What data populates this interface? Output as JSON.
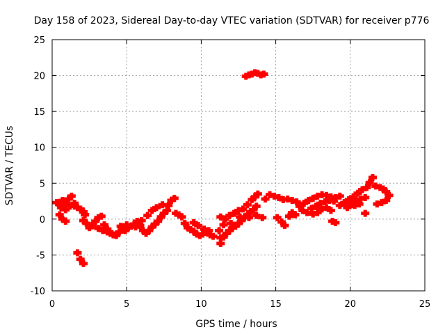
{
  "chart_data": {
    "type": "scatter",
    "title": "Day 158 of 2023, Sidereal Day-to-day VTEC variation (SDTVAR) for receiver p776",
    "xlabel": "GPS time / hours",
    "ylabel": "SDTVAR / TECUs",
    "xlim": [
      0,
      25
    ],
    "ylim": [
      -10,
      25
    ],
    "xticks": [
      "0",
      "5",
      "10",
      "15",
      "20",
      "25"
    ],
    "yticks": [
      "-10",
      "-5",
      "0",
      "5",
      "10",
      "15",
      "20",
      "25"
    ],
    "grid": true,
    "colors": {
      "points": "#ff0000",
      "grid": "#a0a0a0",
      "axes": "#000000"
    },
    "series": [
      {
        "name": "SDTVAR",
        "points": [
          [
            0.3,
            2.3
          ],
          [
            0.5,
            2.0
          ],
          [
            0.7,
            2.6
          ],
          [
            0.9,
            2.1
          ],
          [
            1.1,
            2.8
          ],
          [
            1.3,
            3.2
          ],
          [
            1.5,
            2.2
          ],
          [
            1.7,
            1.6
          ],
          [
            1.9,
            1.4
          ],
          [
            2.1,
            1.0
          ],
          [
            0.5,
            0.6
          ],
          [
            0.7,
            0.0
          ],
          [
            0.9,
            -0.3
          ],
          [
            0.6,
            1.6
          ],
          [
            0.9,
            1.3
          ],
          [
            1.2,
            1.8
          ],
          [
            1.5,
            1.8
          ],
          [
            2.2,
            0.6
          ],
          [
            2.1,
            -0.2
          ],
          [
            2.3,
            -0.6
          ],
          [
            2.5,
            -1.2
          ],
          [
            2.7,
            -0.9
          ],
          [
            2.9,
            -0.3
          ],
          [
            3.1,
            0.2
          ],
          [
            3.3,
            0.4
          ],
          [
            3.5,
            -0.8
          ],
          [
            3.7,
            -1.4
          ],
          [
            3.9,
            -2.0
          ],
          [
            4.1,
            -2.2
          ],
          [
            4.3,
            -2.3
          ],
          [
            4.5,
            -1.8
          ],
          [
            4.7,
            -1.4
          ],
          [
            4.9,
            -1.6
          ],
          [
            5.1,
            -1.2
          ],
          [
            5.3,
            -1.0
          ],
          [
            5.5,
            -0.7
          ],
          [
            5.7,
            -0.3
          ],
          [
            5.9,
            -0.9
          ],
          [
            6.1,
            -1.6
          ],
          [
            6.3,
            -2.0
          ],
          [
            6.5,
            -1.6
          ],
          [
            6.7,
            -1.1
          ],
          [
            6.9,
            -0.7
          ],
          [
            7.1,
            -0.3
          ],
          [
            7.3,
            0.3
          ],
          [
            7.5,
            0.8
          ],
          [
            7.7,
            1.2
          ],
          [
            3.1,
            -1.3
          ],
          [
            3.4,
            -1.6
          ],
          [
            3.7,
            -1.8
          ],
          [
            4.0,
            -2.0
          ],
          [
            4.6,
            -1.0
          ],
          [
            5.0,
            -0.8
          ],
          [
            5.6,
            -1.1
          ],
          [
            6.0,
            -0.2
          ],
          [
            6.4,
            0.5
          ],
          [
            6.7,
            1.2
          ],
          [
            7.0,
            1.6
          ],
          [
            7.4,
            2.0
          ],
          [
            7.8,
            1.9
          ],
          [
            8.0,
            2.6
          ],
          [
            8.2,
            2.9
          ],
          [
            8.3,
            0.8
          ],
          [
            8.5,
            0.6
          ],
          [
            8.7,
            0.3
          ],
          [
            8.9,
            -0.6
          ],
          [
            9.1,
            -1.2
          ],
          [
            9.3,
            -1.5
          ],
          [
            9.5,
            -1.7
          ],
          [
            9.7,
            -2.1
          ],
          [
            9.9,
            -2.3
          ],
          [
            10.1,
            -2.1
          ],
          [
            10.3,
            -1.8
          ],
          [
            10.5,
            -1.6
          ],
          [
            9.5,
            -0.5
          ],
          [
            9.8,
            -0.9
          ],
          [
            10.2,
            -1.4
          ],
          [
            10.6,
            -2.2
          ],
          [
            10.8,
            -2.4
          ],
          [
            1.7,
            -4.7
          ],
          [
            1.9,
            -5.6
          ],
          [
            2.1,
            -6.2
          ],
          [
            11.2,
            -1.6
          ],
          [
            11.3,
            -2.6
          ],
          [
            11.3,
            -3.4
          ],
          [
            11.5,
            -2.5
          ],
          [
            11.7,
            -2.0
          ],
          [
            11.9,
            -1.6
          ],
          [
            12.1,
            -1.2
          ],
          [
            12.3,
            -1.0
          ],
          [
            12.5,
            -0.6
          ],
          [
            12.7,
            -0.2
          ],
          [
            12.9,
            0.2
          ],
          [
            13.1,
            0.6
          ],
          [
            13.3,
            1.0
          ],
          [
            13.5,
            1.3
          ],
          [
            13.7,
            1.8
          ],
          [
            11.3,
            0.3
          ],
          [
            11.6,
            0.0
          ],
          [
            11.9,
            0.5
          ],
          [
            12.2,
            0.8
          ],
          [
            12.5,
            1.2
          ],
          [
            12.8,
            1.4
          ],
          [
            13.1,
            2.0
          ],
          [
            13.4,
            2.7
          ],
          [
            13.6,
            3.1
          ],
          [
            13.8,
            3.5
          ],
          [
            11.5,
            -0.8
          ],
          [
            12.0,
            -0.6
          ],
          [
            12.6,
            0.3
          ],
          [
            13.2,
            0.2
          ],
          [
            13.7,
            0.5
          ],
          [
            14.1,
            0.2
          ],
          [
            13.0,
            19.9
          ],
          [
            13.2,
            20.1
          ],
          [
            13.4,
            20.2
          ],
          [
            13.6,
            20.4
          ],
          [
            13.8,
            20.3
          ],
          [
            14.0,
            20.1
          ],
          [
            14.2,
            20.2
          ],
          [
            14.3,
            2.8
          ],
          [
            14.6,
            3.4
          ],
          [
            14.9,
            3.2
          ],
          [
            15.2,
            3.0
          ],
          [
            15.5,
            2.7
          ],
          [
            15.8,
            2.8
          ],
          [
            16.1,
            2.6
          ],
          [
            16.4,
            2.4
          ],
          [
            15.1,
            0.2
          ],
          [
            15.4,
            -0.4
          ],
          [
            15.6,
            -0.9
          ],
          [
            15.9,
            0.4
          ],
          [
            16.1,
            0.9
          ],
          [
            16.3,
            0.6
          ],
          [
            16.6,
            1.8
          ],
          [
            16.9,
            2.2
          ],
          [
            17.2,
            2.6
          ],
          [
            17.5,
            2.9
          ],
          [
            17.8,
            3.2
          ],
          [
            18.1,
            3.4
          ],
          [
            18.4,
            3.3
          ],
          [
            18.7,
            3.1
          ],
          [
            19.0,
            3.0
          ],
          [
            19.3,
            3.2
          ],
          [
            16.8,
            1.2
          ],
          [
            17.1,
            0.9
          ],
          [
            17.4,
            1.5
          ],
          [
            17.7,
            1.8
          ],
          [
            18.0,
            2.2
          ],
          [
            18.3,
            2.4
          ],
          [
            18.6,
            2.6
          ],
          [
            18.9,
            2.5
          ],
          [
            17.5,
            0.7
          ],
          [
            17.8,
            0.9
          ],
          [
            18.1,
            1.4
          ],
          [
            18.4,
            1.6
          ],
          [
            18.7,
            1.2
          ],
          [
            19.0,
            -0.5
          ],
          [
            18.8,
            -0.3
          ],
          [
            19.3,
            1.9
          ],
          [
            19.6,
            2.3
          ],
          [
            19.9,
            2.7
          ],
          [
            20.2,
            3.1
          ],
          [
            20.5,
            3.6
          ],
          [
            20.8,
            4.1
          ],
          [
            21.1,
            4.4
          ],
          [
            21.3,
            5.1
          ],
          [
            21.5,
            5.8
          ],
          [
            21.7,
            4.6
          ],
          [
            22.0,
            4.4
          ],
          [
            22.2,
            4.2
          ],
          [
            22.4,
            3.8
          ],
          [
            22.6,
            3.3
          ],
          [
            22.4,
            2.6
          ],
          [
            22.1,
            2.3
          ],
          [
            21.8,
            2.1
          ],
          [
            21.0,
            0.8
          ],
          [
            20.1,
            2.0
          ],
          [
            20.4,
            2.4
          ],
          [
            20.7,
            2.8
          ],
          [
            21.0,
            3.0
          ],
          [
            19.8,
            1.6
          ],
          [
            20.3,
            1.9
          ],
          [
            20.6,
            2.1
          ]
        ]
      }
    ]
  }
}
